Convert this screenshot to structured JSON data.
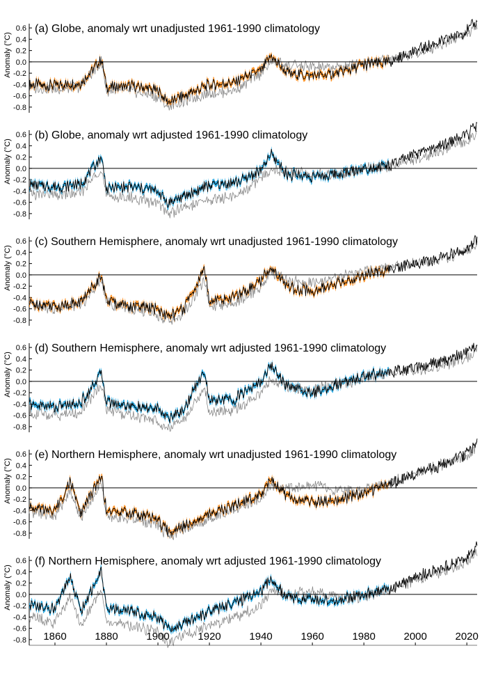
{
  "chart_data": [
    {
      "type": "line",
      "title": "(a) Globe, anomaly wrt unadjusted 1961-1990 climatology",
      "ylabel": "Anomaly (°C)",
      "ylim": [
        -0.9,
        0.7
      ],
      "yticks": [
        "0.6",
        "0.4",
        "0.2",
        "0.0",
        "-0.2",
        "-0.4",
        "-0.6",
        "-0.8"
      ],
      "band_color": "#ff8c1a",
      "series": [
        {
          "color": "#000000",
          "x": [
            1850,
            1860,
            1870,
            1878,
            1880,
            1890,
            1900,
            1904,
            1910,
            1920,
            1930,
            1940,
            1944,
            1950,
            1960,
            1970,
            1980,
            1990,
            2000,
            2010,
            2020,
            2024
          ],
          "values": [
            -0.4,
            -0.42,
            -0.38,
            0.05,
            -0.45,
            -0.43,
            -0.5,
            -0.72,
            -0.6,
            -0.4,
            -0.35,
            -0.15,
            0.1,
            -0.2,
            -0.25,
            -0.2,
            -0.05,
            0.0,
            0.2,
            0.35,
            0.55,
            0.72
          ]
        },
        {
          "color": "#888888",
          "x": [
            1850,
            1860,
            1870,
            1878,
            1880,
            1890,
            1900,
            1904,
            1910,
            1920,
            1930,
            1940,
            1944,
            1950,
            1960,
            1970,
            1980,
            1990,
            2000,
            2010,
            2020,
            2024
          ],
          "values": [
            -0.45,
            -0.48,
            -0.44,
            0.0,
            -0.5,
            -0.52,
            -0.62,
            -0.8,
            -0.7,
            -0.55,
            -0.5,
            -0.2,
            0.0,
            -0.05,
            -0.1,
            -0.1,
            0.0,
            0.05,
            0.15,
            0.3,
            0.5,
            0.62
          ]
        }
      ]
    },
    {
      "type": "line",
      "title": "(b) Globe, anomaly wrt adjusted 1961-1990 climatology",
      "ylabel": "Anomaly (°C)",
      "ylim": [
        -0.9,
        0.7
      ],
      "yticks": [
        "0.6",
        "0.4",
        "0.2",
        "0.0",
        "-0.2",
        "-0.4",
        "-0.6",
        "-0.8"
      ],
      "band_color": "#1aa3e0",
      "series": [
        {
          "color": "#000000",
          "x": [
            1850,
            1860,
            1870,
            1878,
            1880,
            1890,
            1900,
            1904,
            1910,
            1920,
            1930,
            1940,
            1944,
            1950,
            1960,
            1970,
            1980,
            1990,
            2000,
            2010,
            2020,
            2024
          ],
          "values": [
            -0.3,
            -0.32,
            -0.28,
            0.2,
            -0.35,
            -0.33,
            -0.4,
            -0.62,
            -0.5,
            -0.3,
            -0.25,
            -0.05,
            0.25,
            -0.1,
            -0.15,
            -0.1,
            0.0,
            0.05,
            0.25,
            0.4,
            0.6,
            0.75
          ]
        },
        {
          "color": "#888888",
          "x": [
            1850,
            1860,
            1870,
            1878,
            1880,
            1890,
            1900,
            1904,
            1910,
            1920,
            1930,
            1940,
            1944,
            1950,
            1960,
            1970,
            1980,
            1990,
            2000,
            2010,
            2020,
            2024
          ],
          "values": [
            -0.45,
            -0.48,
            -0.44,
            0.0,
            -0.5,
            -0.52,
            -0.62,
            -0.8,
            -0.7,
            -0.55,
            -0.5,
            -0.2,
            0.0,
            -0.05,
            -0.1,
            -0.1,
            0.0,
            0.05,
            0.15,
            0.3,
            0.5,
            0.62
          ]
        }
      ]
    },
    {
      "type": "line",
      "title": "(c) Southern Hemisphere, anomaly wrt unadjusted 1961-1990 climatology",
      "ylabel": "Anomaly (°C)",
      "ylim": [
        -0.9,
        0.7
      ],
      "yticks": [
        "0.6",
        "0.4",
        "0.2",
        "0.0",
        "-0.2",
        "-0.4",
        "-0.6",
        "-0.8"
      ],
      "band_color": "#ff8c1a",
      "series": [
        {
          "color": "#000000",
          "x": [
            1850,
            1860,
            1870,
            1878,
            1880,
            1890,
            1900,
            1904,
            1910,
            1918,
            1920,
            1930,
            1940,
            1944,
            1950,
            1960,
            1970,
            1980,
            1990,
            2000,
            2010,
            2020,
            2024
          ],
          "values": [
            -0.5,
            -0.55,
            -0.48,
            0.0,
            -0.45,
            -0.55,
            -0.6,
            -0.75,
            -0.6,
            0.1,
            -0.45,
            -0.4,
            -0.1,
            0.15,
            -0.2,
            -0.3,
            -0.15,
            0.0,
            0.1,
            0.2,
            0.3,
            0.45,
            0.62
          ]
        },
        {
          "color": "#888888",
          "x": [
            1850,
            1860,
            1870,
            1878,
            1880,
            1890,
            1900,
            1904,
            1910,
            1918,
            1920,
            1930,
            1940,
            1944,
            1950,
            1960,
            1970,
            1980,
            1990,
            2000,
            2010,
            2020,
            2024
          ],
          "values": [
            -0.55,
            -0.6,
            -0.55,
            -0.05,
            -0.5,
            -0.62,
            -0.7,
            -0.82,
            -0.7,
            -0.1,
            -0.55,
            -0.5,
            -0.2,
            0.05,
            -0.1,
            -0.15,
            -0.05,
            0.05,
            0.15,
            0.2,
            0.28,
            0.42,
            0.55
          ]
        }
      ]
    },
    {
      "type": "line",
      "title": "(d) Southern Hemisphere, anomaly wrt adjusted 1961-1990 climatology",
      "ylabel": "Anomaly (°C)",
      "ylim": [
        -0.9,
        0.7
      ],
      "yticks": [
        "0.6",
        "0.4",
        "0.2",
        "0.0",
        "-0.2",
        "-0.4",
        "-0.6",
        "-0.8"
      ],
      "band_color": "#1aa3e0",
      "series": [
        {
          "color": "#000000",
          "x": [
            1850,
            1860,
            1870,
            1878,
            1880,
            1890,
            1900,
            1904,
            1910,
            1918,
            1920,
            1930,
            1940,
            1944,
            1950,
            1960,
            1970,
            1980,
            1990,
            2000,
            2010,
            2020,
            2024
          ],
          "values": [
            -0.4,
            -0.45,
            -0.38,
            0.15,
            -0.35,
            -0.45,
            -0.5,
            -0.65,
            -0.5,
            0.2,
            -0.35,
            -0.3,
            0.0,
            0.3,
            -0.1,
            -0.2,
            -0.05,
            0.1,
            0.15,
            0.25,
            0.35,
            0.5,
            0.68
          ]
        },
        {
          "color": "#888888",
          "x": [
            1850,
            1860,
            1870,
            1878,
            1880,
            1890,
            1900,
            1904,
            1910,
            1918,
            1920,
            1930,
            1940,
            1944,
            1950,
            1960,
            1970,
            1980,
            1990,
            2000,
            2010,
            2020,
            2024
          ],
          "values": [
            -0.55,
            -0.6,
            -0.55,
            -0.05,
            -0.5,
            -0.62,
            -0.7,
            -0.82,
            -0.7,
            -0.1,
            -0.55,
            -0.5,
            -0.2,
            0.05,
            -0.1,
            -0.15,
            -0.05,
            0.05,
            0.15,
            0.2,
            0.28,
            0.42,
            0.55
          ]
        }
      ]
    },
    {
      "type": "line",
      "title": "(e) Northern Hemisphere, anomaly wrt unadjusted 1961-1990 climatology",
      "ylabel": "Anomaly (°C)",
      "ylim": [
        -0.9,
        0.7
      ],
      "yticks": [
        "0.6",
        "0.4",
        "0.2",
        "0.0",
        "-0.2",
        "-0.4",
        "-0.6",
        "-0.8"
      ],
      "band_color": "#ff8c1a",
      "series": [
        {
          "color": "#000000",
          "x": [
            1850,
            1860,
            1866,
            1870,
            1878,
            1880,
            1890,
            1900,
            1904,
            1910,
            1920,
            1930,
            1940,
            1944,
            1950,
            1960,
            1970,
            1980,
            1990,
            2000,
            2010,
            2020,
            2024
          ],
          "values": [
            -0.35,
            -0.4,
            0.1,
            -0.45,
            0.2,
            -0.4,
            -0.45,
            -0.55,
            -0.78,
            -0.65,
            -0.45,
            -0.3,
            -0.1,
            0.15,
            -0.15,
            -0.25,
            -0.2,
            -0.1,
            0.05,
            0.25,
            0.4,
            0.6,
            0.8
          ]
        },
        {
          "color": "#888888",
          "x": [
            1850,
            1860,
            1866,
            1870,
            1878,
            1880,
            1890,
            1900,
            1904,
            1910,
            1920,
            1930,
            1940,
            1944,
            1950,
            1960,
            1970,
            1980,
            1990,
            2000,
            2010,
            2020,
            2024
          ],
          "values": [
            -0.4,
            -0.5,
            -0.05,
            -0.55,
            0.1,
            -0.5,
            -0.55,
            -0.65,
            -0.85,
            -0.75,
            -0.55,
            -0.4,
            -0.2,
            0.05,
            0.0,
            0.05,
            -0.05,
            -0.05,
            0.1,
            0.25,
            0.4,
            0.58,
            0.75
          ]
        }
      ]
    },
    {
      "type": "line",
      "title": "(f) Northern Hemisphere, anomaly wrt adjusted 1961-1990 climatology",
      "ylabel": "Anomaly (°C)",
      "ylim": [
        -0.9,
        0.7
      ],
      "yticks": [
        "0.6",
        "0.4",
        "0.2",
        "0.0",
        "-0.2",
        "-0.4",
        "-0.6",
        "-0.8"
      ],
      "xticks": [
        "1860",
        "1880",
        "1900",
        "1920",
        "1940",
        "1960",
        "1980",
        "2000",
        "2020"
      ],
      "band_color": "#1aa3e0",
      "series": [
        {
          "color": "#000000",
          "x": [
            1850,
            1860,
            1866,
            1870,
            1878,
            1880,
            1890,
            1900,
            1904,
            1910,
            1920,
            1930,
            1940,
            1944,
            1950,
            1960,
            1970,
            1980,
            1990,
            2000,
            2010,
            2020,
            2024
          ],
          "values": [
            -0.2,
            -0.25,
            0.3,
            -0.3,
            0.4,
            -0.25,
            -0.3,
            -0.4,
            -0.62,
            -0.5,
            -0.3,
            -0.15,
            0.05,
            0.3,
            -0.05,
            -0.1,
            -0.1,
            0.0,
            0.1,
            0.3,
            0.45,
            0.65,
            0.85
          ]
        },
        {
          "color": "#888888",
          "x": [
            1850,
            1860,
            1866,
            1870,
            1878,
            1880,
            1890,
            1900,
            1904,
            1910,
            1920,
            1930,
            1940,
            1944,
            1950,
            1960,
            1970,
            1980,
            1990,
            2000,
            2010,
            2020,
            2024
          ],
          "values": [
            -0.4,
            -0.5,
            -0.05,
            -0.55,
            0.1,
            -0.5,
            -0.55,
            -0.65,
            -0.85,
            -0.75,
            -0.55,
            -0.4,
            -0.2,
            0.05,
            0.0,
            0.05,
            -0.05,
            -0.05,
            0.1,
            0.25,
            0.4,
            0.58,
            0.75
          ]
        }
      ]
    }
  ]
}
